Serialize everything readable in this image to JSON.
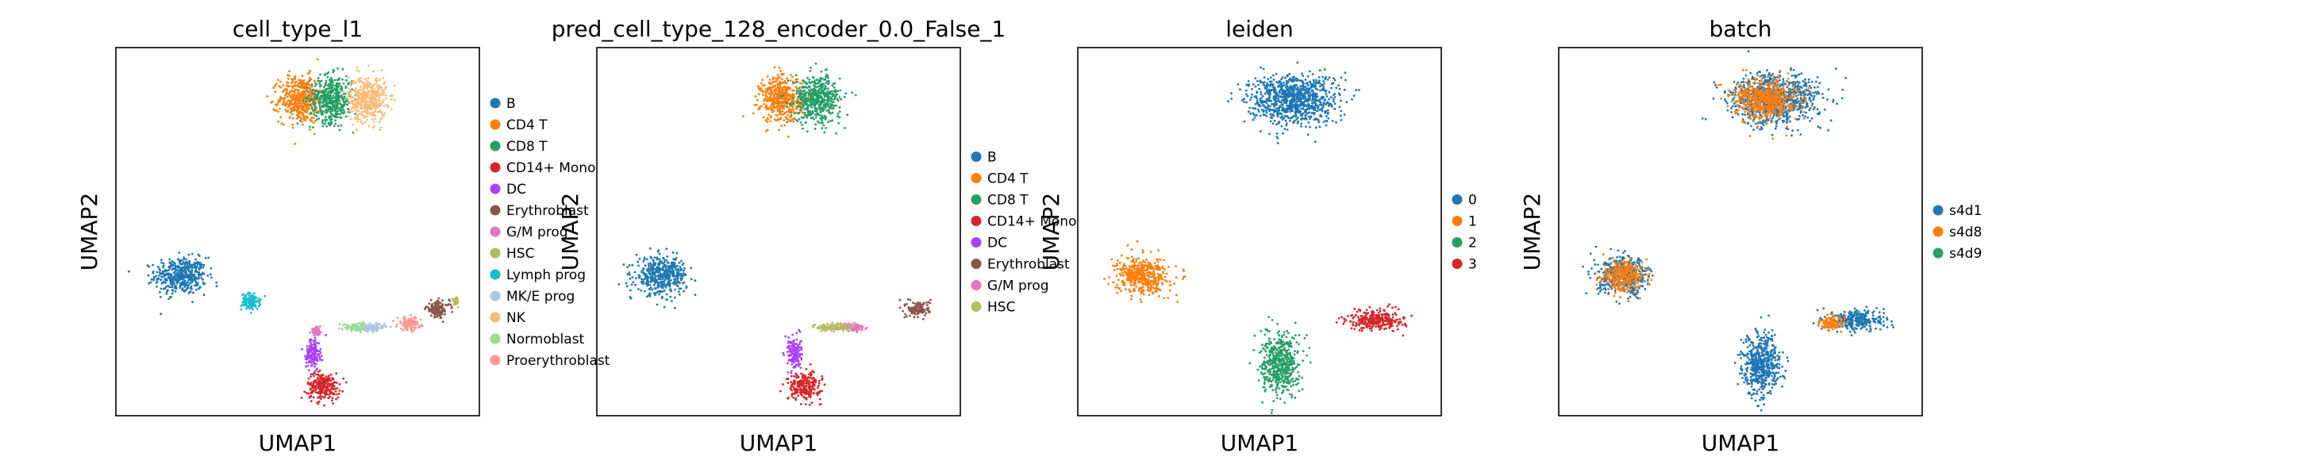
{
  "chart_data": [
    {
      "type": "scatter",
      "title": "cell_type_l1",
      "xlabel": "UMAP1",
      "ylabel": "UMAP2",
      "grid": false,
      "legend_position": "right",
      "legend": [
        "B",
        "CD4 T",
        "CD8 T",
        "CD14+ Mono",
        "DC",
        "Erythroblast",
        "G/M prog",
        "HSC",
        "Lymph prog",
        "MK/E prog",
        "NK",
        "Normoblast",
        "Proerythroblast"
      ],
      "colors": [
        "#1f77b4",
        "#ff7f0e",
        "#279e68",
        "#d62728",
        "#aa40fc",
        "#8c564b",
        "#e377c2",
        "#b5bd61",
        "#17becf",
        "#aec7e8",
        "#ffbb78",
        "#98df8a",
        "#ff9896"
      ],
      "clusters": [
        {
          "name": "B",
          "x": 0.0,
          "y": 0.38,
          "rx": 0.11,
          "ry": 0.055
        },
        {
          "name": "Lymph prog",
          "x": 0.27,
          "y": 0.31,
          "rx": 0.04,
          "ry": 0.025
        },
        {
          "name": "CD4 T",
          "x": 0.46,
          "y": 0.86,
          "rx": 0.09,
          "ry": 0.07
        },
        {
          "name": "CD8 T",
          "x": 0.58,
          "y": 0.86,
          "rx": 0.09,
          "ry": 0.07
        },
        {
          "name": "NK",
          "x": 0.72,
          "y": 0.86,
          "rx": 0.08,
          "ry": 0.07
        },
        {
          "name": "CD14+ Mono",
          "x": 0.55,
          "y": 0.08,
          "rx": 0.07,
          "ry": 0.04
        },
        {
          "name": "DC",
          "x": 0.51,
          "y": 0.17,
          "rx": 0.03,
          "ry": 0.05
        },
        {
          "name": "Normoblast",
          "x": 0.68,
          "y": 0.24,
          "rx": 0.07,
          "ry": 0.012
        },
        {
          "name": "MK/E prog",
          "x": 0.74,
          "y": 0.24,
          "rx": 0.05,
          "ry": 0.012
        },
        {
          "name": "Proerythroblast",
          "x": 0.88,
          "y": 0.25,
          "rx": 0.05,
          "ry": 0.02
        },
        {
          "name": "Erythroblast",
          "x": 0.99,
          "y": 0.29,
          "rx": 0.05,
          "ry": 0.025
        },
        {
          "name": "G/M prog",
          "x": 0.52,
          "y": 0.23,
          "rx": 0.02,
          "ry": 0.01
        },
        {
          "name": "HSC",
          "x": 1.06,
          "y": 0.31,
          "rx": 0.01,
          "ry": 0.01
        }
      ]
    },
    {
      "type": "scatter",
      "title": "pred_cell_type_128_encoder_0.0_False_1",
      "xlabel": "UMAP1",
      "ylabel": "UMAP2",
      "grid": false,
      "legend_position": "right",
      "legend": [
        "B",
        "CD4 T",
        "CD8 T",
        "CD14+ Mono",
        "DC",
        "Erythroblast",
        "G/M prog",
        "HSC"
      ],
      "colors": [
        "#1f77b4",
        "#ff7f0e",
        "#279e68",
        "#d62728",
        "#aa40fc",
        "#8c564b",
        "#e377c2",
        "#b5bd61"
      ],
      "clusters": [
        {
          "name": "B",
          "x": 0.0,
          "y": 0.38,
          "rx": 0.11,
          "ry": 0.055
        },
        {
          "name": "CD4 T",
          "x": 0.46,
          "y": 0.86,
          "rx": 0.09,
          "ry": 0.07
        },
        {
          "name": "CD8 T",
          "x": 0.6,
          "y": 0.86,
          "rx": 0.1,
          "ry": 0.07
        },
        {
          "name": "CD14+ Mono",
          "x": 0.55,
          "y": 0.08,
          "rx": 0.07,
          "ry": 0.04
        },
        {
          "name": "DC",
          "x": 0.51,
          "y": 0.17,
          "rx": 0.03,
          "ry": 0.05
        },
        {
          "name": "Erythroblast",
          "x": 0.99,
          "y": 0.29,
          "rx": 0.05,
          "ry": 0.025
        },
        {
          "name": "G/M prog",
          "x": 0.74,
          "y": 0.24,
          "rx": 0.05,
          "ry": 0.012
        },
        {
          "name": "HSC",
          "x": 0.66,
          "y": 0.24,
          "rx": 0.07,
          "ry": 0.012
        }
      ]
    },
    {
      "type": "scatter",
      "title": "leiden",
      "xlabel": "UMAP1",
      "ylabel": "UMAP2",
      "grid": false,
      "legend_position": "right",
      "legend": [
        "0",
        "1",
        "2",
        "3"
      ],
      "colors": [
        "#1f77b4",
        "#ff7f0e",
        "#279e68",
        "#d62728"
      ],
      "clusters": [
        {
          "name": "0",
          "x": 0.58,
          "y": 0.86,
          "rx": 0.19,
          "ry": 0.075
        },
        {
          "name": "1",
          "x": 0.0,
          "y": 0.38,
          "rx": 0.11,
          "ry": 0.055
        },
        {
          "name": "2",
          "x": 0.53,
          "y": 0.14,
          "rx": 0.08,
          "ry": 0.09
        },
        {
          "name": "3",
          "x": 0.9,
          "y": 0.26,
          "rx": 0.12,
          "ry": 0.03
        }
      ]
    },
    {
      "type": "scatter",
      "title": "batch",
      "xlabel": "UMAP1",
      "ylabel": "UMAP2",
      "grid": false,
      "legend_position": "right",
      "legend": [
        "s4d1",
        "s4d8",
        "s4d9"
      ],
      "colors": [
        "#1f77b4",
        "#ff7f0e",
        "#279e68"
      ],
      "clusters": [
        {
          "name": "s4d1",
          "x": 0.58,
          "y": 0.86,
          "rx": 0.19,
          "ry": 0.075
        },
        {
          "name": "s4d1",
          "x": 0.0,
          "y": 0.38,
          "rx": 0.11,
          "ry": 0.055
        },
        {
          "name": "s4d1",
          "x": 0.53,
          "y": 0.14,
          "rx": 0.08,
          "ry": 0.09
        },
        {
          "name": "s4d1",
          "x": 0.9,
          "y": 0.26,
          "rx": 0.12,
          "ry": 0.03
        },
        {
          "name": "s4d8",
          "x": 0.55,
          "y": 0.86,
          "rx": 0.13,
          "ry": 0.06
        },
        {
          "name": "s4d8",
          "x": 0.0,
          "y": 0.38,
          "rx": 0.09,
          "ry": 0.045
        },
        {
          "name": "s4d8",
          "x": 0.8,
          "y": 0.25,
          "rx": 0.05,
          "ry": 0.02
        }
      ]
    }
  ]
}
